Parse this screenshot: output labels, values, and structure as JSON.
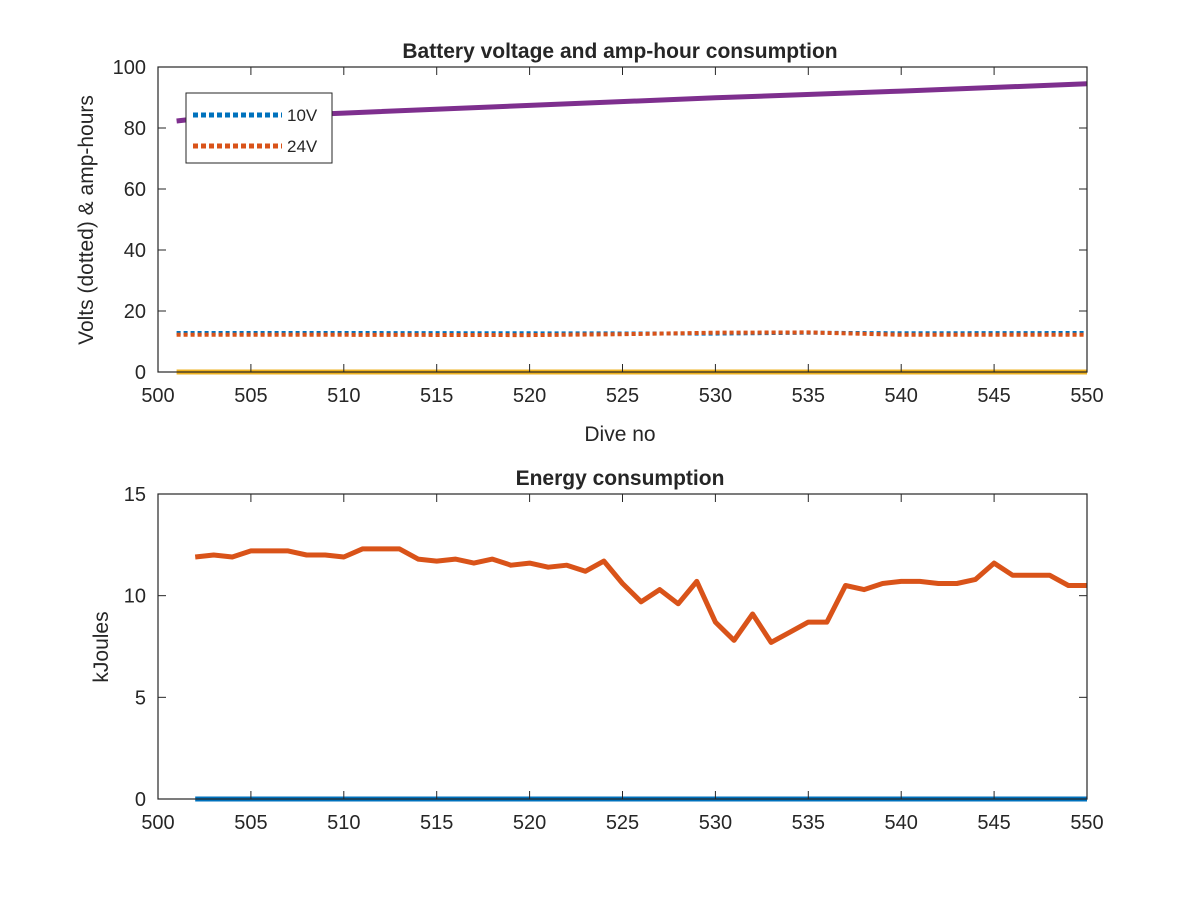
{
  "colors": {
    "blue": "#0072bd",
    "orange": "#d95319",
    "yellow": "#edb120",
    "purple": "#7e2f8e",
    "axis": "#262626"
  },
  "chart_data": [
    {
      "type": "line",
      "title": "Battery voltage and amp-hour consumption",
      "xlabel": "Dive no",
      "ylabel": "Volts (dotted) & amp-hours",
      "xlim": [
        500,
        550
      ],
      "ylim": [
        0,
        100
      ],
      "xticks": [
        500,
        505,
        510,
        515,
        520,
        525,
        530,
        535,
        540,
        545,
        550
      ],
      "yticks": [
        0,
        20,
        40,
        60,
        80,
        100
      ],
      "xtick_labels": [
        "500",
        "505",
        "510",
        "515",
        "520",
        "525",
        "530",
        "535",
        "540",
        "545",
        "550"
      ],
      "ytick_labels": [
        "0",
        "20",
        "40",
        "60",
        "80",
        "100"
      ],
      "grid": false,
      "legend": {
        "position": "top-left",
        "entries": [
          "10V",
          "24V"
        ]
      },
      "series": [
        {
          "name": "10V",
          "style": "dotted",
          "color": "#0072bd",
          "x": [
            501,
            510,
            520,
            530,
            535,
            540,
            550
          ],
          "y": [
            12.8,
            12.8,
            12.7,
            12.6,
            12.9,
            12.7,
            12.8
          ]
        },
        {
          "name": "24V",
          "style": "dotted",
          "color": "#d95319",
          "x": [
            501,
            510,
            520,
            525,
            530,
            535,
            540,
            550
          ],
          "y": [
            12.2,
            12.2,
            12.1,
            12.4,
            12.9,
            13.0,
            12.2,
            12.2
          ]
        },
        {
          "style": "solid",
          "color": "#edb120",
          "x": [
            501,
            550
          ],
          "y": [
            0,
            0
          ]
        },
        {
          "style": "solid",
          "color": "#7e2f8e",
          "x": [
            501,
            502,
            510,
            520,
            530,
            540,
            550
          ],
          "y": [
            82.3,
            83.0,
            84.9,
            87.4,
            89.9,
            92.1,
            94.5
          ]
        }
      ]
    },
    {
      "type": "line",
      "title": "Energy consumption",
      "xlabel": "",
      "ylabel": "kJoules",
      "xlim": [
        500,
        550
      ],
      "ylim": [
        0,
        15
      ],
      "xticks": [
        500,
        505,
        510,
        515,
        520,
        525,
        530,
        535,
        540,
        545,
        550
      ],
      "yticks": [
        0,
        5,
        10,
        15
      ],
      "xtick_labels": [
        "500",
        "505",
        "510",
        "515",
        "520",
        "525",
        "530",
        "535",
        "540",
        "545",
        "550"
      ],
      "ytick_labels": [
        "0",
        "5",
        "10",
        "15"
      ],
      "grid": false,
      "series": [
        {
          "style": "solid",
          "color": "#d95319",
          "x": [
            502,
            503,
            504,
            505,
            506,
            507,
            508,
            509,
            510,
            511,
            512,
            513,
            514,
            515,
            516,
            517,
            518,
            519,
            520,
            521,
            522,
            523,
            524,
            525,
            526,
            527,
            528,
            529,
            530,
            531,
            532,
            533,
            534,
            535,
            536,
            537,
            538,
            539,
            540,
            541,
            542,
            543,
            544,
            545,
            546,
            547,
            548,
            549,
            550
          ],
          "y": [
            11.9,
            12.0,
            11.9,
            12.2,
            12.2,
            12.2,
            12.0,
            12.0,
            11.9,
            12.3,
            12.3,
            12.3,
            11.8,
            11.7,
            11.8,
            11.6,
            11.8,
            11.5,
            11.6,
            11.4,
            11.5,
            11.2,
            11.7,
            10.6,
            9.7,
            10.3,
            9.6,
            10.7,
            8.7,
            7.8,
            9.1,
            7.7,
            8.2,
            8.7,
            8.7,
            10.5,
            10.3,
            10.6,
            10.7,
            10.7,
            10.6,
            10.6,
            10.8,
            11.6,
            11.0,
            11.0,
            11.0,
            10.5,
            10.5
          ]
        },
        {
          "style": "solid",
          "color": "#0072bd",
          "x": [
            502,
            550
          ],
          "y": [
            0,
            0
          ]
        }
      ]
    }
  ]
}
